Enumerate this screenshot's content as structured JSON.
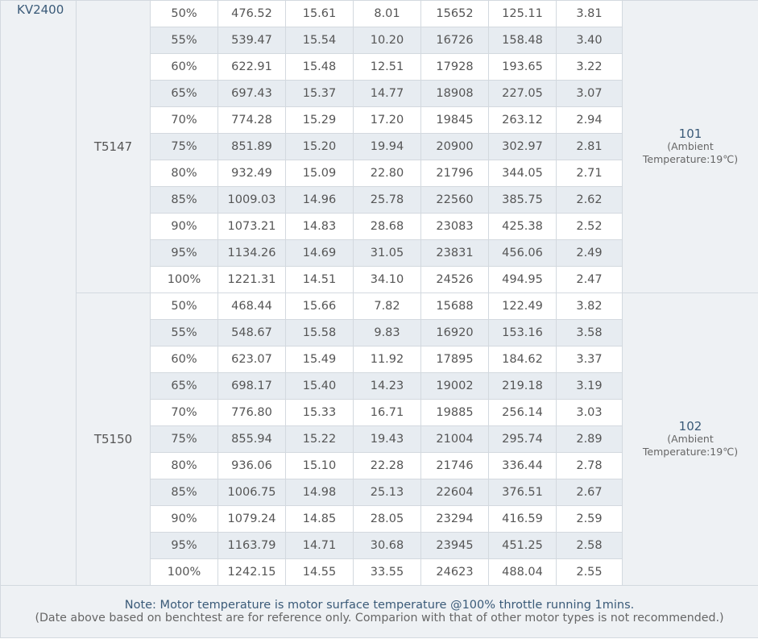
{
  "motor_kv": "KV2400",
  "groups": [
    {
      "prop": "T5147",
      "temp_value": "101",
      "temp_note_line1": "(Ambient",
      "temp_note_line2": "Temperature:19℃)",
      "rows": [
        [
          "50%",
          "476.52",
          "15.61",
          "8.01",
          "15652",
          "125.11",
          "3.81"
        ],
        [
          "55%",
          "539.47",
          "15.54",
          "10.20",
          "16726",
          "158.48",
          "3.40"
        ],
        [
          "60%",
          "622.91",
          "15.48",
          "12.51",
          "17928",
          "193.65",
          "3.22"
        ],
        [
          "65%",
          "697.43",
          "15.37",
          "14.77",
          "18908",
          "227.05",
          "3.07"
        ],
        [
          "70%",
          "774.28",
          "15.29",
          "17.20",
          "19845",
          "263.12",
          "2.94"
        ],
        [
          "75%",
          "851.89",
          "15.20",
          "19.94",
          "20900",
          "302.97",
          "2.81"
        ],
        [
          "80%",
          "932.49",
          "15.09",
          "22.80",
          "21796",
          "344.05",
          "2.71"
        ],
        [
          "85%",
          "1009.03",
          "14.96",
          "25.78",
          "22560",
          "385.75",
          "2.62"
        ],
        [
          "90%",
          "1073.21",
          "14.83",
          "28.68",
          "23083",
          "425.38",
          "2.52"
        ],
        [
          "95%",
          "1134.26",
          "14.69",
          "31.05",
          "23831",
          "456.06",
          "2.49"
        ],
        [
          "100%",
          "1221.31",
          "14.51",
          "34.10",
          "24526",
          "494.95",
          "2.47"
        ]
      ]
    },
    {
      "prop": "T5150",
      "temp_value": "102",
      "temp_note_line1": "(Ambient",
      "temp_note_line2": "Temperature:19℃)",
      "rows": [
        [
          "50%",
          "468.44",
          "15.66",
          "7.82",
          "15688",
          "122.49",
          "3.82"
        ],
        [
          "55%",
          "548.67",
          "15.58",
          "9.83",
          "16920",
          "153.16",
          "3.58"
        ],
        [
          "60%",
          "623.07",
          "15.49",
          "11.92",
          "17895",
          "184.62",
          "3.37"
        ],
        [
          "65%",
          "698.17",
          "15.40",
          "14.23",
          "19002",
          "219.18",
          "3.19"
        ],
        [
          "70%",
          "776.80",
          "15.33",
          "16.71",
          "19885",
          "256.14",
          "3.03"
        ],
        [
          "75%",
          "855.94",
          "15.22",
          "19.43",
          "21004",
          "295.74",
          "2.89"
        ],
        [
          "80%",
          "936.06",
          "15.10",
          "22.28",
          "21746",
          "336.44",
          "2.78"
        ],
        [
          "85%",
          "1006.75",
          "14.98",
          "25.13",
          "22604",
          "376.51",
          "2.67"
        ],
        [
          "90%",
          "1079.24",
          "14.85",
          "28.05",
          "23294",
          "416.59",
          "2.59"
        ],
        [
          "95%",
          "1163.79",
          "14.71",
          "30.68",
          "23945",
          "451.25",
          "2.58"
        ],
        [
          "100%",
          "1242.15",
          "14.55",
          "33.55",
          "24623",
          "488.04",
          "2.55"
        ]
      ]
    }
  ],
  "footer": {
    "note": "Note: Motor temperature is motor surface temperature @100% throttle running 1mins.",
    "disclaimer": "(Date above based on benchtest are for reference only. Comparion with that of other motor types is not recommended.)"
  },
  "colors": {
    "accent_text": "#3a5a78",
    "stripe": "#e7ecf1",
    "side_cell": "#eef1f4",
    "border": "#d3d9df"
  }
}
